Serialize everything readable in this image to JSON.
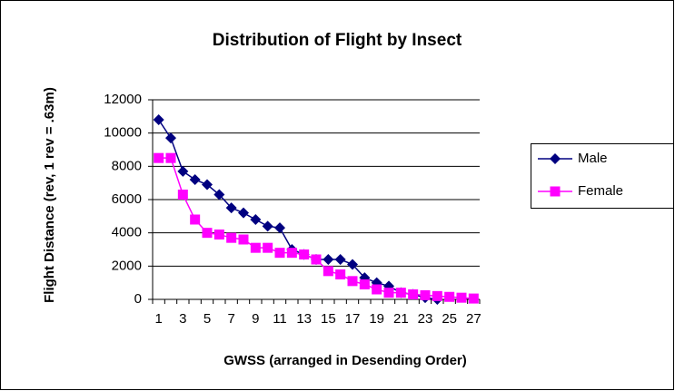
{
  "chart_data": {
    "type": "line",
    "title": "Distribution of Flight by Insect",
    "x_label": "GWSS (arranged in Desending Order)",
    "y_label": "Flight Distance (rev, 1 rev = .63m)",
    "categories": [
      1,
      null,
      3,
      null,
      5,
      null,
      7,
      null,
      9,
      null,
      11,
      null,
      13,
      null,
      15,
      null,
      17,
      null,
      19,
      null,
      21,
      null,
      23,
      null,
      25,
      null,
      27
    ],
    "series": [
      {
        "name": "Male",
        "color": "#000080",
        "marker": "diamond",
        "values": [
          10800,
          9700,
          7700,
          7200,
          6900,
          6300,
          5500,
          5200,
          4800,
          4400,
          4300,
          3000,
          2700,
          2400,
          2400,
          2400,
          2100,
          1300,
          1000,
          800,
          400,
          300,
          100,
          0,
          null,
          null,
          null
        ]
      },
      {
        "name": "Female",
        "color": "#ff00ff",
        "marker": "square",
        "values": [
          8500,
          8500,
          6300,
          4800,
          4000,
          3900,
          3700,
          3600,
          3100,
          3100,
          2800,
          2800,
          2700,
          2400,
          1700,
          1500,
          1100,
          900,
          600,
          400,
          400,
          300,
          250,
          200,
          150,
          100,
          50
        ]
      }
    ],
    "ylim": [
      0,
      12000
    ],
    "yticks": [
      0,
      2000,
      4000,
      6000,
      8000,
      10000,
      12000
    ],
    "grid": true,
    "legend": "right"
  }
}
